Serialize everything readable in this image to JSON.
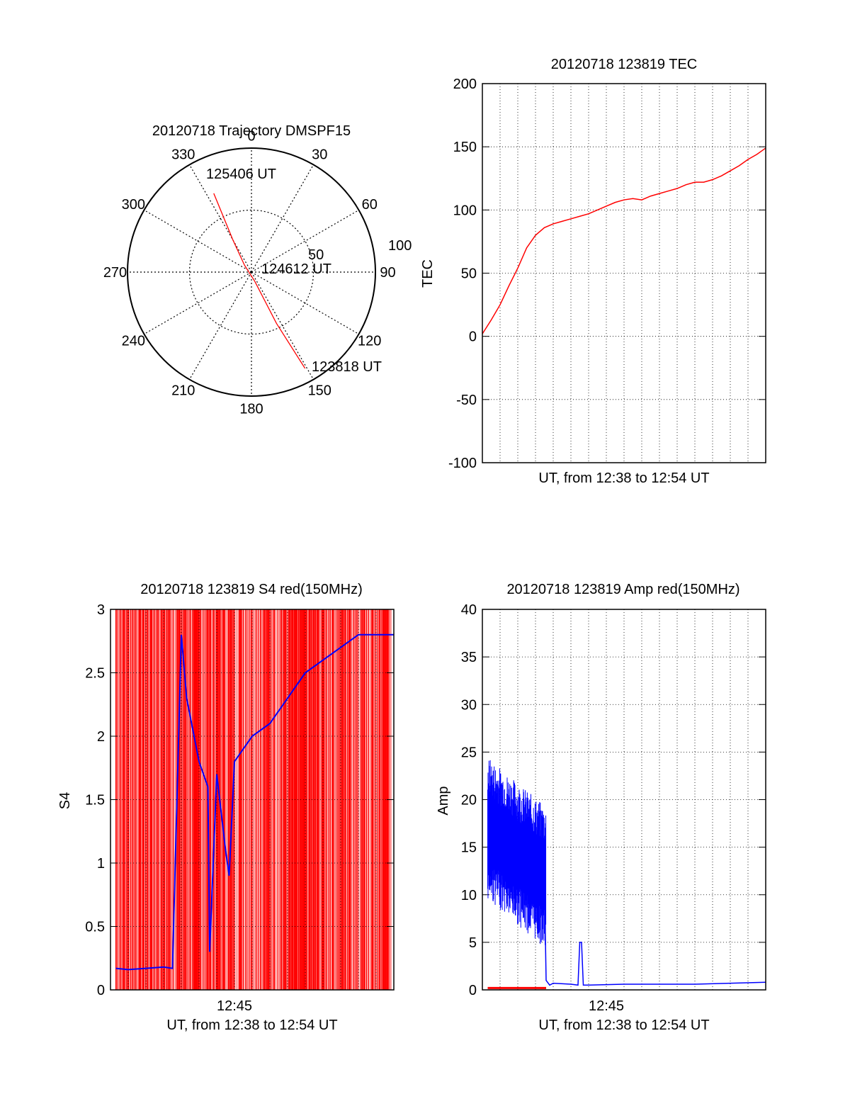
{
  "colors": {
    "red": "#ff0000",
    "blue": "#0000ff",
    "axis": "#000000",
    "grid": "#000000"
  },
  "chart_data": [
    {
      "type": "polar",
      "title": "20120718 Trajectory DMSPF15",
      "angle_labels": [
        "0",
        "30",
        "60",
        "90",
        "120",
        "150",
        "180",
        "210",
        "240",
        "270",
        "300",
        "330"
      ],
      "radius_labels": [
        "50",
        "100"
      ],
      "radius_max": 100,
      "grid": true,
      "series": [
        {
          "color": "red",
          "points": [
            {
              "az": 334.4,
              "r": 70.4
            },
            {
              "az": 330,
              "r": 30
            },
            {
              "az": 315,
              "r": 8
            },
            {
              "az": 160,
              "r": 8
            },
            {
              "az": 154,
              "r": 46
            },
            {
              "az": 150.9,
              "r": 88.9
            }
          ]
        }
      ],
      "annotations": [
        {
          "text": "125406 UT",
          "az": 334.4,
          "r": 70.4
        },
        {
          "text": "124612 UT",
          "az": 0,
          "r": 0
        },
        {
          "text": "123818 UT",
          "az": 150.9,
          "r": 88.9
        }
      ]
    },
    {
      "type": "line",
      "title": "20120718 123819 TEC",
      "xlabel": "UT, from 12:38 to 12:54 UT",
      "ylabel": "TEC",
      "xlim": [
        0,
        16
      ],
      "ylim": [
        -100,
        200
      ],
      "yticks": [
        "-100",
        "-50",
        "0",
        "50",
        "100",
        "150",
        "200"
      ],
      "xticks": [],
      "grid": true,
      "series": [
        {
          "color": "red",
          "x": [
            0,
            0.5,
            1,
            1.5,
            2,
            2.5,
            3,
            3.5,
            4,
            4.5,
            5,
            5.5,
            6,
            6.5,
            7,
            7.5,
            8,
            8.5,
            9,
            9.5,
            10,
            10.5,
            11,
            11.5,
            12,
            12.5,
            13,
            13.5,
            14,
            14.5,
            15,
            15.5,
            16
          ],
          "y": [
            2,
            13,
            25,
            40,
            54,
            70,
            80,
            86,
            89,
            91,
            93,
            95,
            97,
            100,
            103,
            106,
            108,
            109,
            108,
            111,
            113,
            115,
            117,
            120,
            122,
            122,
            124,
            127,
            131,
            135,
            140,
            144,
            149
          ]
        }
      ]
    },
    {
      "type": "line",
      "title": "20120718 123819 S4 red(150MHz)",
      "xlabel": "UT, from 12:38 to 12:54 UT",
      "ylabel": "S4",
      "xlim": [
        0,
        16
      ],
      "ylim": [
        0,
        3
      ],
      "yticks": [
        "0",
        "0.5",
        "1",
        "1.5",
        "2",
        "2.5",
        "3"
      ],
      "xticks": [
        {
          "x": 7,
          "label": "12:45"
        }
      ],
      "grid": true,
      "series": [
        {
          "color": "red",
          "x": [
            0,
            3.5,
            5.6,
            6.1,
            16
          ],
          "y": [
            0,
            3,
            0,
            3,
            3
          ]
        },
        {
          "color": "blue",
          "x": [
            0.3,
            1,
            2,
            3,
            3.5,
            4,
            4.3,
            5,
            5.5,
            5.6,
            6,
            6.5,
            6.7,
            7,
            7.5,
            8,
            9,
            10,
            11,
            12,
            13,
            14,
            15,
            16
          ],
          "y": [
            0.17,
            0.16,
            0.17,
            0.18,
            0.17,
            2.8,
            2.3,
            1.8,
            1.6,
            0.3,
            1.7,
            1.1,
            0.9,
            1.8,
            1.9,
            2.0,
            2.1,
            2.3,
            2.5,
            2.6,
            2.7,
            2.8,
            2.8,
            2.8
          ]
        }
      ]
    },
    {
      "type": "line",
      "title": "20120718 123819 Amp red(150MHz)",
      "xlabel": "UT, from 12:38 to 12:54 UT",
      "ylabel": "Amp",
      "xlim": [
        0,
        16
      ],
      "ylim": [
        0,
        40
      ],
      "yticks": [
        "0",
        "5",
        "10",
        "15",
        "20",
        "25",
        "30",
        "35",
        "40"
      ],
      "xticks": [
        {
          "x": 7,
          "label": "12:45"
        }
      ],
      "grid": true,
      "series": [
        {
          "color": "blue",
          "x": [
            0.3,
            0.5,
            1,
            1.5,
            2,
            2.5,
            3,
            3.5,
            3.6,
            3.8,
            4,
            5,
            5.4,
            5.5,
            5.6,
            5.7,
            6,
            8,
            10,
            12,
            14,
            16
          ],
          "y": [
            15,
            18,
            16,
            15,
            14,
            13,
            13,
            12,
            1,
            0.5,
            0.7,
            0.6,
            0.5,
            5,
            5,
            0.5,
            0.5,
            0.6,
            0.6,
            0.6,
            0.7,
            0.8
          ]
        },
        {
          "color": "red",
          "x": [
            0.3,
            3.6
          ],
          "y": [
            0.2,
            0.2
          ]
        }
      ]
    }
  ]
}
